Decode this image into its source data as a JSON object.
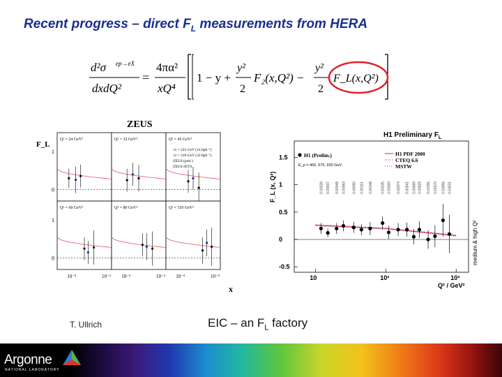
{
  "slide": {
    "title_main": "Recent progress – direct F",
    "title_sub": "L",
    "title_tail": " measurements from HERA",
    "author": "T. Ullrich",
    "slogan_main": "EIC – an F",
    "slogan_sub": "L",
    "slogan_tail": " factory"
  },
  "formula": {
    "lhs_num": "d²σ",
    "lhs_num_sup": "ep→eX",
    "lhs_den": "dxdQ²",
    "equals": "=",
    "pref_num": "4πα²",
    "pref_den": "xQ⁴",
    "term1": "1 − y +",
    "frac_num": "y²",
    "frac_den": "2",
    "f2": "F₂(x,Q²) −",
    "fl": "F_L(x,Q²)"
  },
  "logo": {
    "name": "Argonne",
    "subtitle": "NATIONAL LABORATORY"
  },
  "zeus_figure": {
    "title": "ZEUS",
    "y_label": "F_L",
    "x_label": "x",
    "panels": [
      {
        "label": "Q² = 24 GeV²"
      },
      {
        "label": "Q² = 32 GeV²"
      },
      {
        "label": "Q² = 45 GeV²"
      },
      {
        "label": "Q² = 60 GeV²"
      },
      {
        "label": "Q² = 80 GeV²"
      },
      {
        "label": "Q² = 110 GeV²"
      }
    ],
    "legend": [
      "√s = 225 GeV (14.0pb⁻¹)",
      "√s = 318 GeV (32.8pb⁻¹)",
      "ZEUS (prel.)",
      "ZEUS-JETS"
    ],
    "y_ticks": [
      "1",
      "0"
    ],
    "x_ticks": [
      "10⁻³",
      "10⁻²"
    ]
  },
  "h1_figure": {
    "title_main": "H1 Preliminary F",
    "title_sub": "L",
    "y_label": "F_L (x, Q²)",
    "x_label": "Q² / GeV²",
    "x_axis_mark": "x",
    "right_label": "medium & high Q²",
    "legend": [
      "H1 (Prelim.)",
      "H1 PDF 2000",
      "CTEQ 6.6",
      "MSTW"
    ],
    "energies": "E_p = 460, 575, 920 GeV",
    "y_ticks": [
      "1.5",
      "1",
      "0.5",
      "0",
      "-0.5"
    ],
    "x_ticks": [
      "10",
      "10²",
      "10³"
    ],
    "x_values": [
      "0.00028",
      "0.00037",
      "0.00048",
      "0.00063",
      "0.00090",
      "0.00114",
      "0.00148",
      "0.00235",
      "0.00260",
      "0.00374",
      "0.00541",
      "0.00689",
      "0.00929",
      "0.01256",
      "0.01570",
      "0.02856",
      "0.03531"
    ]
  },
  "chart_data": [
    {
      "type": "scatter",
      "title": "ZEUS",
      "xlabel": "x",
      "ylabel": "F_L",
      "log_x": true,
      "xlim": [
        0.0004,
        0.01
      ],
      "ylim": [
        -0.3,
        1.5
      ],
      "panels": [
        {
          "label": "Q² = 24 GeV²",
          "x": [
            0.0008,
            0.0012,
            0.0016
          ],
          "y": [
            0.3,
            0.26,
            0.36
          ],
          "err": [
            0.25,
            0.35,
            0.3
          ]
        },
        {
          "label": "Q² = 32 GeV²",
          "x": [
            0.001,
            0.0014,
            0.002
          ],
          "y": [
            0.25,
            0.4,
            0.3
          ],
          "err": [
            0.3,
            0.3,
            0.35
          ]
        },
        {
          "label": "Q² = 45 GeV²",
          "x": [
            0.0015,
            0.002,
            0.0028
          ],
          "y": [
            0.22,
            0.3,
            0.05
          ],
          "err": [
            0.3,
            0.3,
            0.4
          ]
        },
        {
          "label": "Q² = 60 GeV²",
          "x": [
            0.002,
            0.0025,
            0.0035
          ],
          "y": [
            0.25,
            0.15,
            0.28
          ],
          "err": [
            0.3,
            0.3,
            0.45
          ]
        },
        {
          "label": "Q² = 80 GeV²",
          "x": [
            0.0025,
            0.0032,
            0.0045
          ],
          "y": [
            0.35,
            0.3,
            0.25
          ],
          "err": [
            0.3,
            0.35,
            0.45
          ]
        },
        {
          "label": "Q² = 110 GeV²",
          "x": [
            0.0035,
            0.0045,
            0.006
          ],
          "y": [
            0.2,
            0.4,
            0.3
          ],
          "err": [
            0.35,
            0.35,
            0.5
          ]
        }
      ],
      "curve_ZEUS_JETS_start_end": [
        0.55,
        0.28
      ]
    },
    {
      "type": "scatter",
      "title": "H1 Preliminary F_L",
      "xlabel": "Q² / GeV²",
      "ylabel": "F_L (x, Q²)",
      "log_x": true,
      "xlim": [
        5,
        1500
      ],
      "ylim": [
        -0.6,
        1.8
      ],
      "series": [
        {
          "name": "H1 (Prelim.)",
          "x": [
            12,
            15,
            20,
            25,
            35,
            45,
            60,
            90,
            110,
            150,
            200,
            250,
            300,
            400,
            500,
            650,
            800
          ],
          "y": [
            0.2,
            0.12,
            0.2,
            0.25,
            0.22,
            0.18,
            0.2,
            0.3,
            0.13,
            0.18,
            0.18,
            0.05,
            0.18,
            0.0,
            0.06,
            0.35,
            0.1
          ],
          "err": [
            0.1,
            0.08,
            0.1,
            0.1,
            0.1,
            0.1,
            0.12,
            0.12,
            0.12,
            0.12,
            0.13,
            0.14,
            0.15,
            0.17,
            0.2,
            0.3,
            0.35
          ]
        }
      ],
      "theory_curves": {
        "H1 PDF 2000": {
          "x": [
            10,
            100,
            1000
          ],
          "y": [
            0.26,
            0.2,
            0.07
          ]
        },
        "CTEQ 6.6": {
          "x": [
            10,
            100,
            1000
          ],
          "y": [
            0.27,
            0.21,
            0.08
          ]
        },
        "MSTW": {
          "x": [
            10,
            100,
            1000
          ],
          "y": [
            0.25,
            0.19,
            0.06
          ]
        }
      },
      "legend_position": "top-right"
    }
  ]
}
